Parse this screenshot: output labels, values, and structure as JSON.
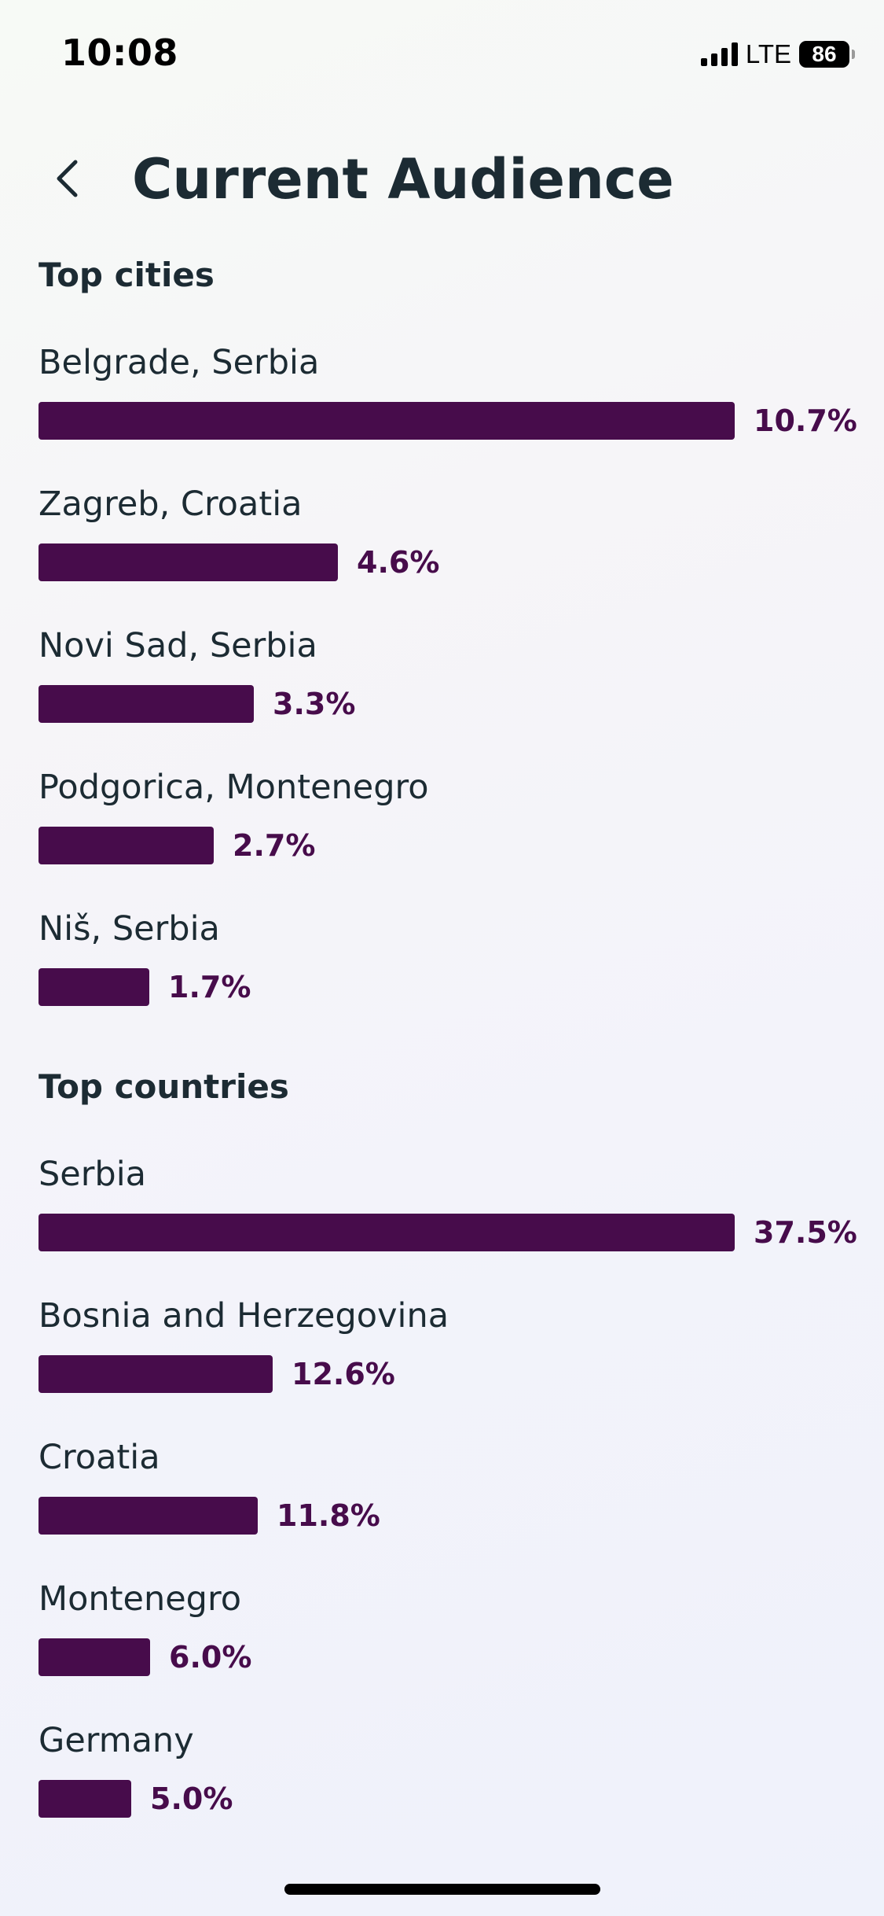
{
  "status_bar": {
    "time": "10:08",
    "network": "LTE",
    "battery": "86"
  },
  "header": {
    "title": "Current Audience"
  },
  "top_cities": {
    "title": "Top cities",
    "items": [
      {
        "label": "Belgrade, Serbia",
        "value": "10.7%",
        "fraction": 1.0
      },
      {
        "label": "Zagreb, Croatia",
        "value": "4.6%",
        "fraction": 0.43
      },
      {
        "label": "Novi Sad, Serbia",
        "value": "3.3%",
        "fraction": 0.309
      },
      {
        "label": "Podgorica, Montenegro",
        "value": "2.7%",
        "fraction": 0.252
      },
      {
        "label": "Niš, Serbia",
        "value": "1.7%",
        "fraction": 0.159
      }
    ]
  },
  "top_countries": {
    "title": "Top countries",
    "items": [
      {
        "label": "Serbia",
        "value": "37.5%",
        "fraction": 1.0
      },
      {
        "label": "Bosnia and Herzegovina",
        "value": "12.6%",
        "fraction": 0.336
      },
      {
        "label": "Croatia",
        "value": "11.8%",
        "fraction": 0.315
      },
      {
        "label": "Montenegro",
        "value": "6.0%",
        "fraction": 0.16
      },
      {
        "label": "Germany",
        "value": "5.0%",
        "fraction": 0.133
      }
    ]
  },
  "colors": {
    "bar": "#470c4b",
    "text": "#1c2b33"
  },
  "icons": {
    "back": "chevron-left-icon",
    "signal": "cellular-signal-icon",
    "battery": "battery-icon"
  }
}
